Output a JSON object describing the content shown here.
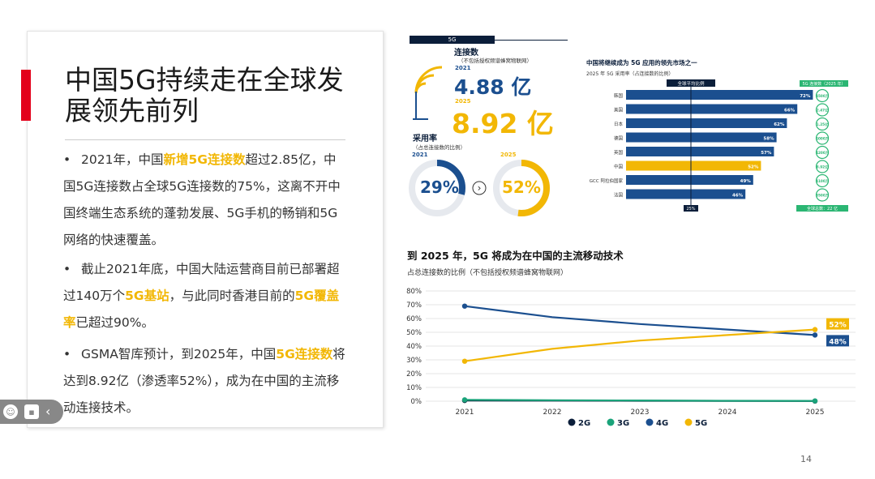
{
  "left": {
    "title": "中国5G持续走在全球发展领先前列",
    "bullets": [
      [
        {
          "t": "2021年，中国",
          "h": false
        },
        {
          "t": "新增5G连接数",
          "h": true
        },
        {
          "t": "超过2.85亿，中国5G连接数占全球5G连接数的75%，这离不开中国终端生态系统的蓬勃发展、5G手机的畅销和5G网络的快速覆盖。",
          "h": false
        }
      ],
      [
        {
          "t": "截止2021年底，中国大陆运营商目前已部署超过140万个",
          "h": false
        },
        {
          "t": "5G基站",
          "h": true
        },
        {
          "t": "，与此同时香港目前的",
          "h": false
        },
        {
          "t": "5G覆盖率",
          "h": true
        },
        {
          "t": "已超过90%。",
          "h": false
        }
      ],
      [
        {
          "t": "GSMA智库预计，到2025年，中国",
          "h": false
        },
        {
          "t": "5G连接数",
          "h": true
        },
        {
          "t": "将达到8.92亿（渗透率52%），成为在中国的主流移动连接技术。",
          "h": false
        }
      ]
    ]
  },
  "infographic": {
    "tag": "5G",
    "connections_title": "连接数",
    "connections_sub": "（不包括授权频谱蜂窝物联网）",
    "year_a": "2021",
    "value_a": "4.88 亿",
    "year_b": "2025",
    "value_b": "8.92 亿",
    "adoption_title": "采用率",
    "adoption_sub": "（占总连接数的比例）",
    "donut_2021": {
      "label": "29%",
      "value": 0.29,
      "color": "#1b4f8f"
    },
    "donut_2025": {
      "label": "52%",
      "value": 0.52,
      "color": "#f2b705"
    },
    "arrow": "›"
  },
  "bar_chart": {
    "title": "中国将继续成为 5G 应用的领先市场之一",
    "subtitle": "2025 年 5G 采用率（占连接数的比例）",
    "avg_label": "全球平均比例",
    "avg_value_label": "25%",
    "avg_value": 25,
    "right_header": "5G 连接数（2025 年）",
    "right_footer": "全球总数：22 亿",
    "colors": {
      "default": "#1b4f8f",
      "highlight": "#f2b705",
      "bubble": "#2bb673"
    },
    "rows": [
      {
        "country": "韩国",
        "value": 72,
        "label": "72%",
        "conn": "4500万",
        "highlight": false
      },
      {
        "country": "美国",
        "value": 66,
        "label": "66%",
        "conn": "2.47亿",
        "highlight": false
      },
      {
        "country": "日本",
        "value": 62,
        "label": "62%",
        "conn": "1.25亿",
        "highlight": false
      },
      {
        "country": "德国",
        "value": 58,
        "label": "58%",
        "conn": "6000万",
        "highlight": false
      },
      {
        "country": "英国",
        "value": 57,
        "label": "57%",
        "conn": "4200万",
        "highlight": false
      },
      {
        "country": "中国",
        "value": 52,
        "label": "52%",
        "conn": "8.92亿",
        "highlight": true
      },
      {
        "country": "GCC 阿拉伯国家",
        "value": 49,
        "label": "49%",
        "conn": "4100万",
        "highlight": false
      },
      {
        "country": "法国",
        "value": 46,
        "label": "46%",
        "conn": "3500万",
        "highlight": false
      }
    ]
  },
  "chart_data": {
    "type": "line",
    "title": "到 2025 年，5G 将成为在中国的主流移动技术",
    "subtitle": "占总连接数的比例（不包括授权频谱蜂窝物联网）",
    "x": [
      "2021",
      "2022",
      "2023",
      "2024",
      "2025"
    ],
    "ylim": [
      0,
      80
    ],
    "yticks": [
      "0%",
      "10%",
      "20%",
      "30%",
      "40%",
      "50%",
      "60%",
      "70%",
      "80%"
    ],
    "grid": true,
    "legend_position": "bottom",
    "series": [
      {
        "name": "2G",
        "color": "#0b1e3a",
        "values": [
          0.5,
          0.4,
          0.3,
          0.2,
          0.1
        ]
      },
      {
        "name": "3G",
        "color": "#1aa37a",
        "values": [
          1,
          0.7,
          0.5,
          0.3,
          0.2
        ]
      },
      {
        "name": "4G",
        "color": "#1b4f8f",
        "values": [
          69,
          61,
          56,
          52,
          48
        ],
        "end_label": "48%"
      },
      {
        "name": "5G",
        "color": "#f2b705",
        "values": [
          29,
          38,
          44,
          48,
          52
        ],
        "end_label": "52%"
      }
    ]
  },
  "page_number": "14"
}
